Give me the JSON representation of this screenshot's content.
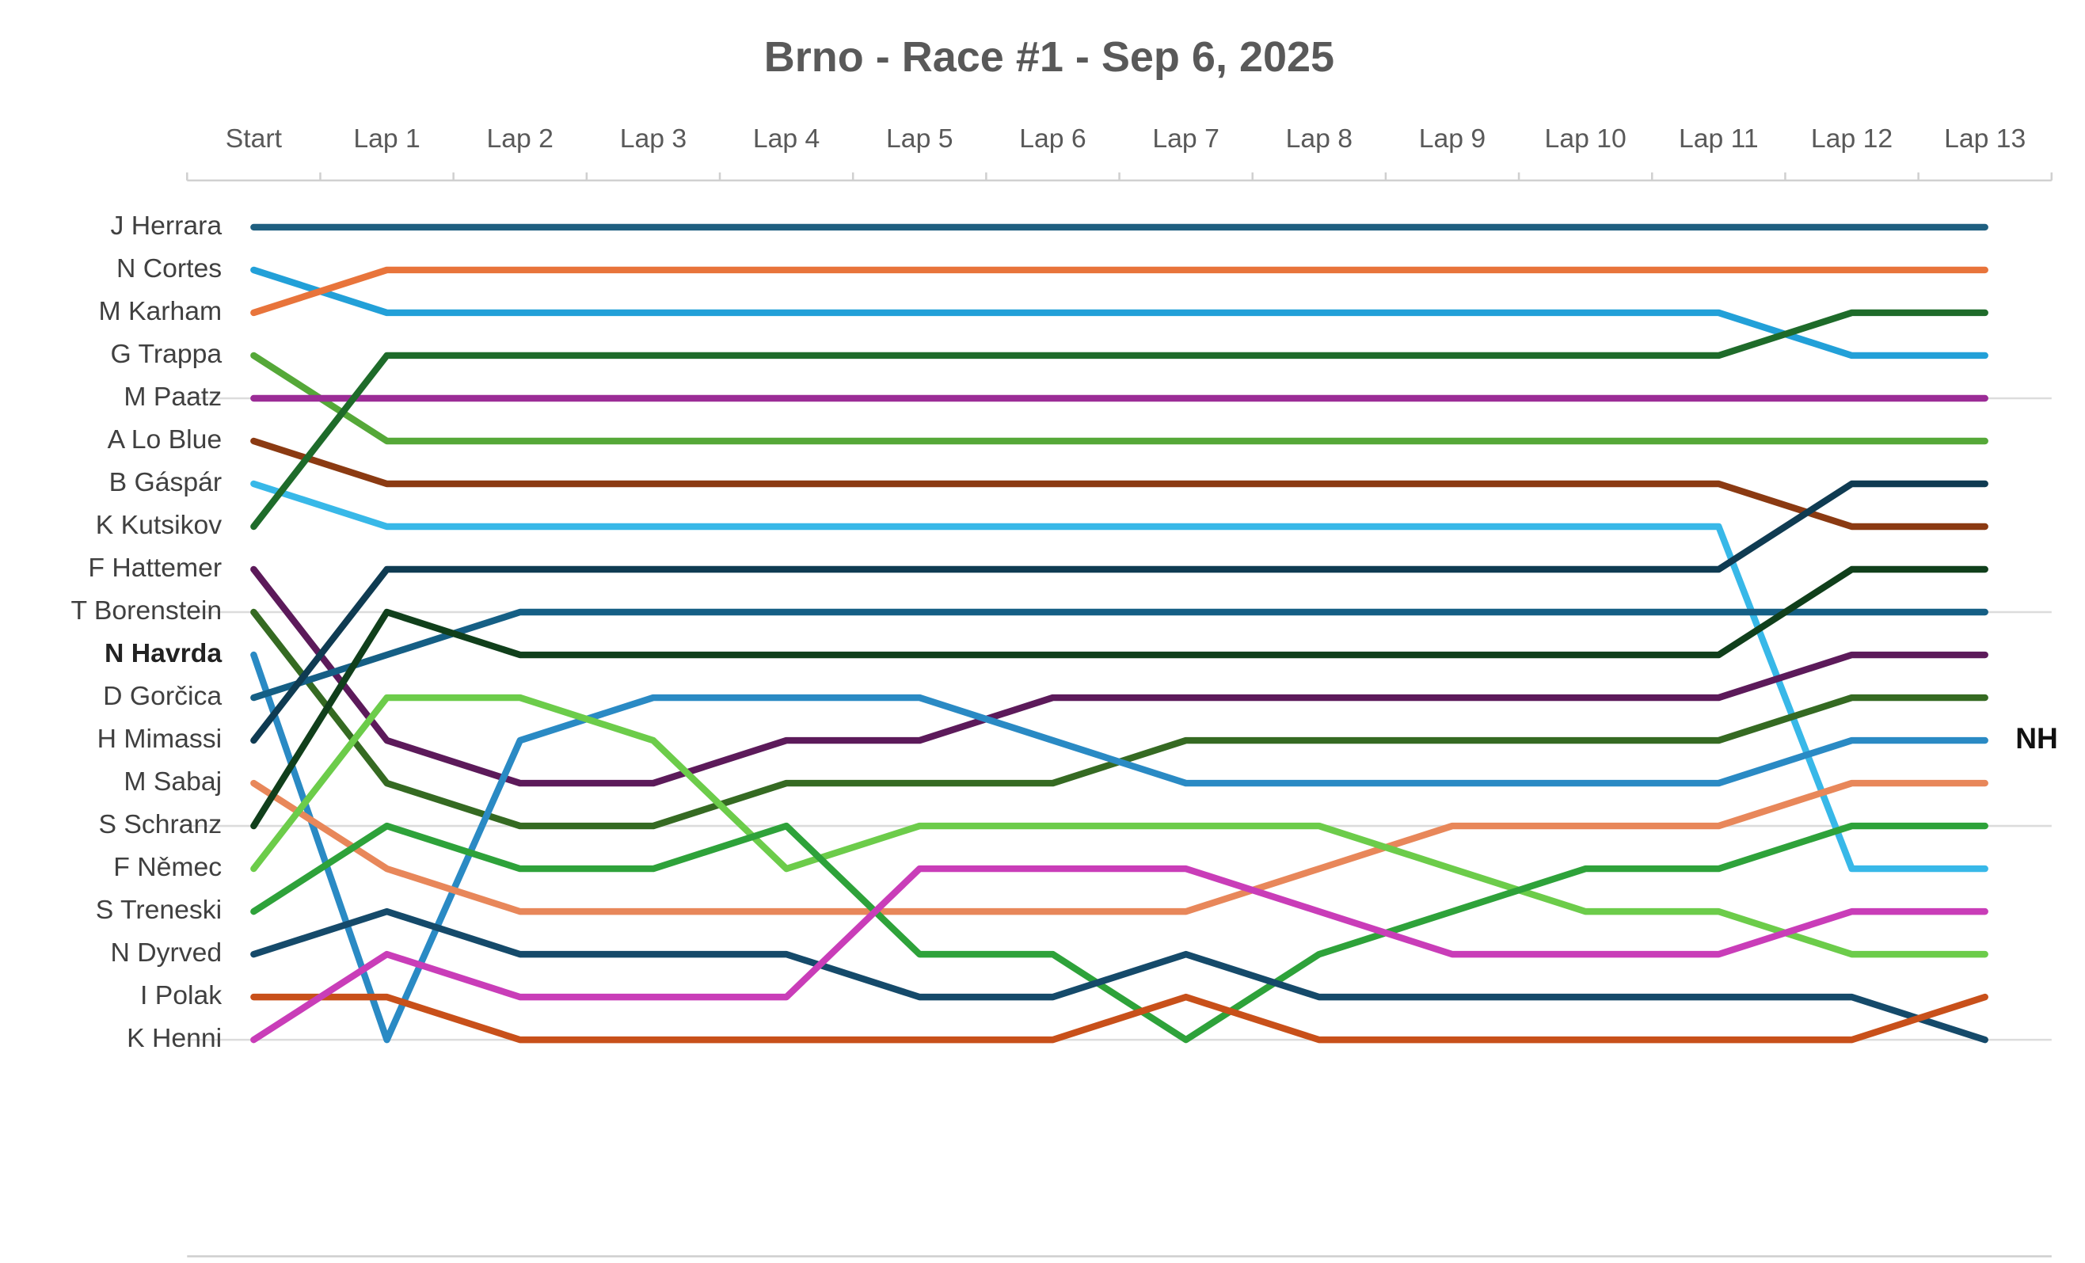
{
  "chart_data": {
    "type": "bump",
    "title": "Brno - Race #1 - Sep 6, 2025",
    "categories": [
      "Start",
      "Lap 1",
      "Lap 2",
      "Lap 3",
      "Lap 4",
      "Lap 5",
      "Lap 6",
      "Lap 7",
      "Lap 8",
      "Lap 9",
      "Lap 10",
      "Lap 11",
      "Lap 12",
      "Lap 13"
    ],
    "ylim": [
      0,
      25
    ],
    "yticks": [
      5,
      10,
      15,
      20
    ],
    "grid": true,
    "y_reversed": true,
    "series": [
      {
        "name": "J Herrara",
        "color": "#1f5f80",
        "values": [
          1,
          1,
          1,
          1,
          1,
          1,
          1,
          1,
          1,
          1,
          1,
          1,
          1,
          1
        ]
      },
      {
        "name": "N Cortes",
        "color": "#22a0d8",
        "values": [
          2,
          3,
          3,
          3,
          3,
          3,
          3,
          3,
          3,
          3,
          3,
          3,
          4,
          4
        ]
      },
      {
        "name": "M Karham",
        "color": "#e8743b",
        "values": [
          3,
          2,
          2,
          2,
          2,
          2,
          2,
          2,
          2,
          2,
          2,
          2,
          2,
          2
        ]
      },
      {
        "name": "G Trappa",
        "color": "#55a838",
        "values": [
          4,
          6,
          6,
          6,
          6,
          6,
          6,
          6,
          6,
          6,
          6,
          6,
          6,
          6
        ]
      },
      {
        "name": "M Paatz",
        "color": "#9b2c96",
        "values": [
          5,
          5,
          5,
          5,
          5,
          5,
          5,
          5,
          5,
          5,
          5,
          5,
          5,
          5
        ]
      },
      {
        "name": "A Lo Blue",
        "color": "#8b3a12",
        "values": [
          6,
          7,
          7,
          7,
          7,
          7,
          7,
          7,
          7,
          7,
          7,
          7,
          8,
          8
        ]
      },
      {
        "name": "B Gáspár",
        "color": "#38b8e8",
        "values": [
          7,
          8,
          8,
          8,
          8,
          8,
          8,
          8,
          8,
          8,
          8,
          8,
          16,
          16
        ]
      },
      {
        "name": "K Kutsikov",
        "color": "#1e6b2a",
        "values": [
          8,
          4,
          4,
          4,
          4,
          4,
          4,
          4,
          4,
          4,
          4,
          4,
          3,
          3
        ]
      },
      {
        "name": "F Hattemer",
        "color": "#5c1a5a",
        "values": [
          9,
          13,
          14,
          14,
          13,
          13,
          12,
          12,
          12,
          12,
          12,
          12,
          11,
          11
        ]
      },
      {
        "name": "T Borenstein",
        "color": "#356a22",
        "values": [
          10,
          14,
          15,
          15,
          14,
          14,
          14,
          13,
          13,
          13,
          13,
          13,
          12,
          12
        ]
      },
      {
        "name": "N Havrda",
        "color": "#2a8ac4",
        "bold": true,
        "end_label": "NH",
        "values": [
          11,
          20,
          13,
          12,
          12,
          12,
          13,
          14,
          14,
          14,
          14,
          14,
          13,
          13
        ]
      },
      {
        "name": "D Gorčica",
        "color": "#155f85",
        "values": [
          12,
          11,
          10,
          10,
          10,
          10,
          10,
          10,
          10,
          10,
          10,
          10,
          10,
          10
        ]
      },
      {
        "name": "H Mimassi",
        "color": "#0f3b52",
        "values": [
          13,
          9,
          9,
          9,
          9,
          9,
          9,
          9,
          9,
          9,
          9,
          9,
          7,
          7
        ]
      },
      {
        "name": "M Sabaj",
        "color": "#e8875a",
        "values": [
          14,
          16,
          17,
          17,
          17,
          17,
          17,
          17,
          16,
          15,
          15,
          15,
          14,
          14
        ]
      },
      {
        "name": "S Schranz",
        "color": "#103f1b",
        "values": [
          15,
          10,
          11,
          11,
          11,
          11,
          11,
          11,
          11,
          11,
          11,
          11,
          9,
          9
        ]
      },
      {
        "name": "F Němec",
        "color": "#6ccc4a",
        "values": [
          16,
          12,
          12,
          13,
          16,
          15,
          15,
          15,
          15,
          16,
          17,
          17,
          18,
          18
        ]
      },
      {
        "name": "S Treneski",
        "color": "#2ea23a",
        "values": [
          17,
          15,
          16,
          16,
          15,
          18,
          18,
          20,
          18,
          17,
          16,
          16,
          15,
          15
        ]
      },
      {
        "name": "N Dyrved",
        "color": "#154a6a",
        "values": [
          18,
          17,
          18,
          18,
          18,
          19,
          19,
          18,
          19,
          19,
          19,
          19,
          19,
          20
        ]
      },
      {
        "name": "I Polak",
        "color": "#c8501a",
        "values": [
          19,
          19,
          20,
          20,
          20,
          20,
          20,
          19,
          20,
          20,
          20,
          20,
          20,
          19
        ]
      },
      {
        "name": "K Henni",
        "color": "#c93db8",
        "values": [
          20,
          18,
          19,
          19,
          19,
          16,
          16,
          16,
          17,
          18,
          18,
          18,
          17,
          17
        ]
      }
    ]
  }
}
